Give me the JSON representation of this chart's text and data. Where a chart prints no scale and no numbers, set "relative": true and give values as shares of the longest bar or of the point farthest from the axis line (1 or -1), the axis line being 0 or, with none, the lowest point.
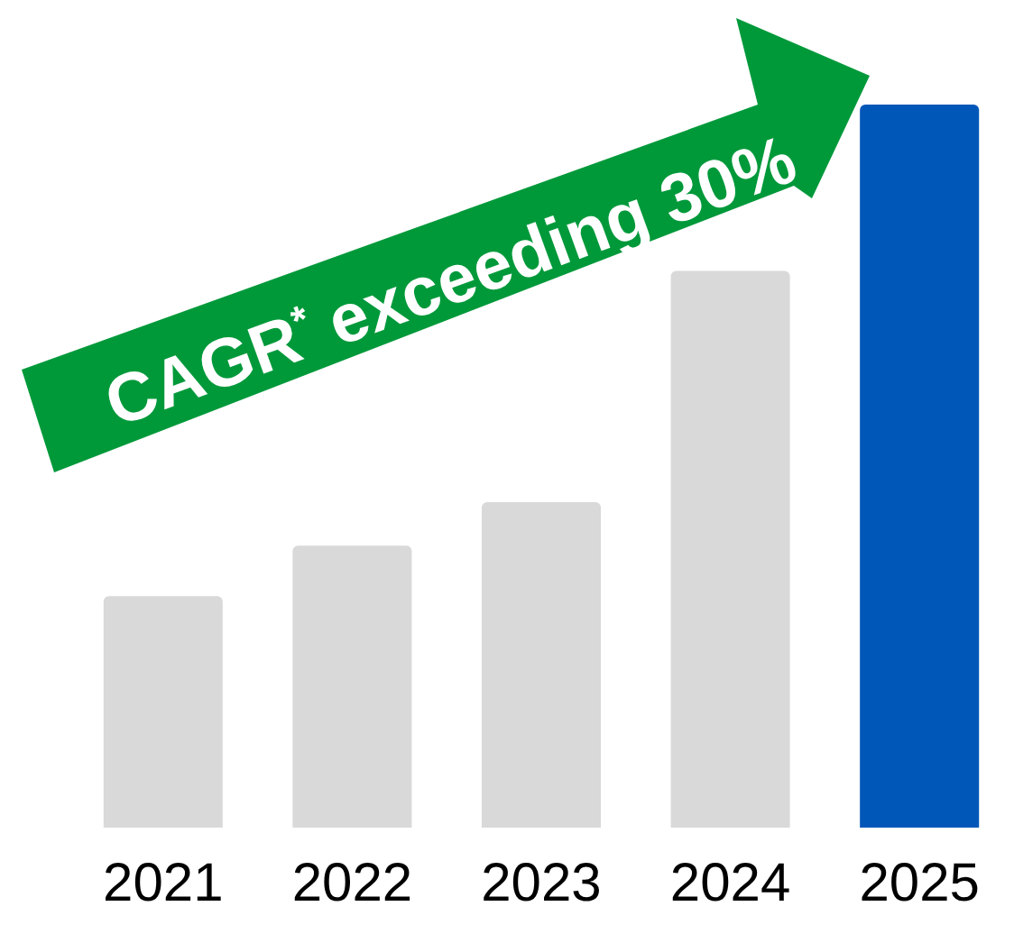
{
  "chart_data": {
    "type": "bar",
    "relative": true,
    "categories": [
      "2021",
      "2022",
      "2023",
      "2024",
      "2025"
    ],
    "values": [
      0.32,
      0.39,
      0.45,
      0.77,
      1
    ],
    "colors": [
      "#d9d9d9",
      "#d9d9d9",
      "#d9d9d9",
      "#d9d9d9",
      "#0057b8"
    ],
    "annotations": [
      "CAGR$^{*}$ exceeding 30%"
    ]
  }
}
